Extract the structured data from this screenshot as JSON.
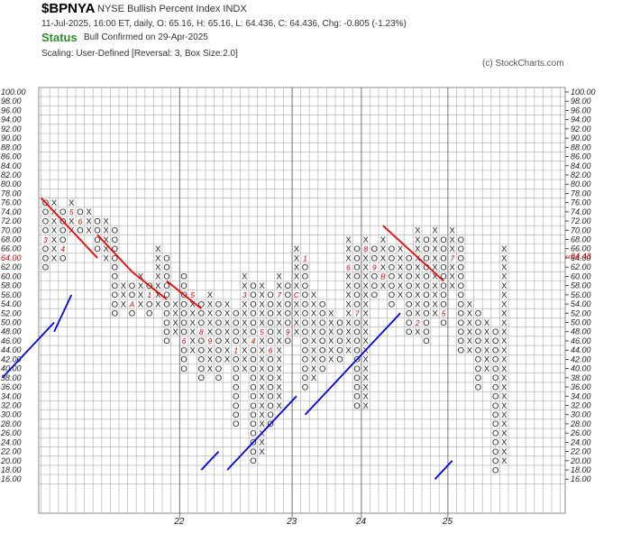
{
  "header": {
    "symbol": "$BPNYA",
    "name": "NYSE Bullish Percent Index  INDX",
    "quote": "11-Jul-2025, 16:00 ET, daily, O: 65.16, H: 65.16, L: 64.436, C: 64.436, Chg: -0.805 (-1.23%)",
    "status_label": "Status",
    "status_text": "Bull Confirmed on 29-Apr-2025",
    "scaling": "Scaling: User-Defined [Reversal: 3, Box Size:2.0]",
    "copyright": "(c) StockCharts.com"
  },
  "colors": {
    "x_mark": "#222222",
    "o_mark": "#222222",
    "month_mark": "#cc0000",
    "grid": "#aaaaaa",
    "resistance_line": "#ee0000",
    "support_line": "#0000dd",
    "last_price": "#cc0000"
  },
  "chart_data": {
    "type": "point-and-figure",
    "box_size": 2.0,
    "reversal": 3,
    "ylim": [
      16,
      100
    ],
    "y_ticks": [
      "100.00",
      "98.00",
      "96.00",
      "94.00",
      "92.00",
      "90.00",
      "88.00",
      "86.00",
      "84.00",
      "82.00",
      "80.00",
      "78.00",
      "76.00",
      "74.00",
      "72.00",
      "70.00",
      "68.00",
      "66.00",
      "64.00",
      "62.00",
      "60.00",
      "58.00",
      "56.00",
      "54.00",
      "52.00",
      "50.00",
      "48.00",
      "46.00",
      "44.00",
      "42.00",
      "40.00",
      "38.00",
      "36.00",
      "34.00",
      "32.00",
      "30.00",
      "28.00",
      "26.00",
      "24.00",
      "22.00",
      "20.00",
      "18.00",
      "16.00"
    ],
    "last_price_tick": "64.00",
    "last_price_label": "64.43",
    "year_labels": [
      {
        "label": "22",
        "column": 16
      },
      {
        "label": "23",
        "column": 29
      },
      {
        "label": "24",
        "column": 37
      },
      {
        "label": "25",
        "column": 47
      }
    ],
    "columns": [
      {
        "type": "O",
        "high": 76,
        "low": 62
      },
      {
        "type": "X",
        "high": 76,
        "low": 64
      },
      {
        "type": "O",
        "high": 74,
        "low": 64
      },
      {
        "type": "X",
        "high": 76,
        "low": 70
      },
      {
        "type": "O",
        "high": 74,
        "low": 70
      },
      {
        "type": "X",
        "high": 74,
        "low": 70
      },
      {
        "type": "O",
        "high": 72,
        "low": 66
      },
      {
        "type": "X",
        "high": 72,
        "low": 64
      },
      {
        "type": "O",
        "high": 70,
        "low": 52
      },
      {
        "type": "X",
        "high": 58,
        "low": 54
      },
      {
        "type": "O",
        "high": 58,
        "low": 52
      },
      {
        "type": "X",
        "high": 60,
        "low": 54
      },
      {
        "type": "O",
        "high": 58,
        "low": 52
      },
      {
        "type": "X",
        "high": 66,
        "low": 54
      },
      {
        "type": "O",
        "high": 64,
        "low": 46
      },
      {
        "type": "X",
        "high": 54,
        "low": 48
      },
      {
        "type": "O",
        "high": 60,
        "low": 40
      },
      {
        "type": "X",
        "high": 56,
        "low": 44
      },
      {
        "type": "O",
        "high": 54,
        "low": 38
      },
      {
        "type": "X",
        "high": 56,
        "low": 40
      },
      {
        "type": "O",
        "high": 54,
        "low": 38
      },
      {
        "type": "X",
        "high": 54,
        "low": 42
      },
      {
        "type": "O",
        "high": 52,
        "low": 28
      },
      {
        "type": "X",
        "high": 60,
        "low": 40
      },
      {
        "type": "O",
        "high": 58,
        "low": 20
      },
      {
        "type": "X",
        "high": 58,
        "low": 22
      },
      {
        "type": "O",
        "high": 56,
        "low": 28
      },
      {
        "type": "X",
        "high": 60,
        "low": 32
      },
      {
        "type": "O",
        "high": 58,
        "low": 46
      },
      {
        "type": "X",
        "high": 66,
        "low": 48
      },
      {
        "type": "O",
        "high": 64,
        "low": 36
      },
      {
        "type": "X",
        "high": 56,
        "low": 38
      },
      {
        "type": "O",
        "high": 54,
        "low": 40
      },
      {
        "type": "X",
        "high": 52,
        "low": 42
      },
      {
        "type": "O",
        "high": 50,
        "low": 42
      },
      {
        "type": "X",
        "high": 68,
        "low": 44
      },
      {
        "type": "O",
        "high": 66,
        "low": 32
      },
      {
        "type": "X",
        "high": 68,
        "low": 32
      },
      {
        "type": "O",
        "high": 66,
        "low": 56
      },
      {
        "type": "X",
        "high": 68,
        "low": 58
      },
      {
        "type": "O",
        "high": 66,
        "low": 54
      },
      {
        "type": "X",
        "high": 66,
        "low": 56
      },
      {
        "type": "O",
        "high": 64,
        "low": 48
      },
      {
        "type": "X",
        "high": 70,
        "low": 48
      },
      {
        "type": "O",
        "high": 68,
        "low": 46
      },
      {
        "type": "X",
        "high": 70,
        "low": 52
      },
      {
        "type": "O",
        "high": 68,
        "low": 50
      },
      {
        "type": "X",
        "high": 70,
        "low": 58
      },
      {
        "type": "O",
        "high": 68,
        "low": 44
      },
      {
        "type": "X",
        "high": 54,
        "low": 44
      },
      {
        "type": "O",
        "high": 52,
        "low": 36
      },
      {
        "type": "X",
        "high": 50,
        "low": 40
      },
      {
        "type": "O",
        "high": 48,
        "low": 18
      },
      {
        "type": "X",
        "high": 66,
        "low": 20
      }
    ],
    "month_markers": [
      {
        "col": 0,
        "value": 68,
        "label": "3"
      },
      {
        "col": 2,
        "value": 66,
        "label": "4"
      },
      {
        "col": 3,
        "value": 74,
        "label": "5"
      },
      {
        "col": 4,
        "value": 72,
        "label": "6"
      },
      {
        "col": 5,
        "value": 64,
        "label": "7"
      },
      {
        "col": 6,
        "value": 56,
        "label": "8"
      },
      {
        "col": 7,
        "value": 60,
        "label": "9"
      },
      {
        "col": 8,
        "value": 46,
        "label": "C"
      },
      {
        "col": 9,
        "value": 62,
        "label": "B"
      },
      {
        "col": 10,
        "value": 54,
        "label": "A"
      },
      {
        "col": 12,
        "value": 56,
        "label": "1"
      },
      {
        "col": 13,
        "value": 40,
        "label": "2"
      },
      {
        "col": 14,
        "value": 40,
        "label": "3"
      },
      {
        "col": 15,
        "value": 56,
        "label": "4"
      },
      {
        "col": 16,
        "value": 46,
        "label": "6"
      },
      {
        "col": 17,
        "value": 56,
        "label": "5"
      },
      {
        "col": 18,
        "value": 48,
        "label": "8"
      },
      {
        "col": 18,
        "value": 32,
        "label": "7"
      },
      {
        "col": 19,
        "value": 46,
        "label": "9"
      },
      {
        "col": 20,
        "value": 24,
        "label": "A"
      },
      {
        "col": 21,
        "value": 58,
        "label": "C"
      },
      {
        "col": 22,
        "value": 44,
        "label": "1"
      },
      {
        "col": 23,
        "value": 62,
        "label": "2"
      },
      {
        "col": 23,
        "value": 56,
        "label": "3"
      },
      {
        "col": 24,
        "value": 46,
        "label": "4"
      },
      {
        "col": 25,
        "value": 48,
        "label": "5"
      },
      {
        "col": 26,
        "value": 44,
        "label": "6"
      },
      {
        "col": 27,
        "value": 66,
        "label": "8"
      },
      {
        "col": 27,
        "value": 56,
        "label": "7"
      },
      {
        "col": 28,
        "value": 48,
        "label": "9"
      },
      {
        "col": 29,
        "value": 56,
        "label": "C"
      },
      {
        "col": 30,
        "value": 64,
        "label": "1"
      },
      {
        "col": 31,
        "value": 62,
        "label": "2"
      },
      {
        "col": 32,
        "value": 66,
        "label": "4"
      },
      {
        "col": 33,
        "value": 60,
        "label": "3"
      },
      {
        "col": 34,
        "value": 56,
        "label": "5"
      },
      {
        "col": 35,
        "value": 62,
        "label": "6"
      },
      {
        "col": 36,
        "value": 52,
        "label": "7"
      },
      {
        "col": 37,
        "value": 66,
        "label": "8"
      },
      {
        "col": 38,
        "value": 68,
        "label": "A"
      },
      {
        "col": 38,
        "value": 62,
        "label": "9"
      },
      {
        "col": 39,
        "value": 60,
        "label": "B"
      },
      {
        "col": 40,
        "value": 68,
        "label": "C"
      },
      {
        "col": 42,
        "value": 46,
        "label": "1"
      },
      {
        "col": 43,
        "value": 50,
        "label": "2"
      },
      {
        "col": 44,
        "value": 42,
        "label": "3"
      },
      {
        "col": 45,
        "value": 40,
        "label": "4"
      },
      {
        "col": 46,
        "value": 52,
        "label": "5"
      },
      {
        "col": 47,
        "value": 64,
        "label": "7"
      }
    ],
    "trend_lines": [
      {
        "kind": "resistance",
        "from": {
          "col": -0.5,
          "value": 77
        },
        "to": {
          "col": 6,
          "value": 64
        }
      },
      {
        "kind": "resistance",
        "from": {
          "col": 6,
          "value": 69
        },
        "to": {
          "col": 10,
          "value": 61
        }
      },
      {
        "kind": "resistance",
        "from": {
          "col": 10,
          "value": 61
        },
        "to": {
          "col": 14,
          "value": 55
        }
      },
      {
        "kind": "resistance",
        "from": {
          "col": 14,
          "value": 59
        },
        "to": {
          "col": 18,
          "value": 53
        }
      },
      {
        "kind": "resistance",
        "from": {
          "col": 39,
          "value": 71
        },
        "to": {
          "col": 46,
          "value": 59
        }
      },
      {
        "kind": "support",
        "from": {
          "col": -5,
          "value": 38
        },
        "to": {
          "col": 1,
          "value": 50
        }
      },
      {
        "kind": "support",
        "from": {
          "col": 1,
          "value": 48
        },
        "to": {
          "col": 3,
          "value": 56
        }
      },
      {
        "kind": "support",
        "from": {
          "col": 18,
          "value": 18
        },
        "to": {
          "col": 20,
          "value": 22
        }
      },
      {
        "kind": "support",
        "from": {
          "col": 21,
          "value": 18
        },
        "to": {
          "col": 29,
          "value": 34
        }
      },
      {
        "kind": "support",
        "from": {
          "col": 30,
          "value": 30
        },
        "to": {
          "col": 41,
          "value": 52
        }
      },
      {
        "kind": "support",
        "from": {
          "col": 45,
          "value": 16
        },
        "to": {
          "col": 47,
          "value": 20
        }
      }
    ]
  }
}
